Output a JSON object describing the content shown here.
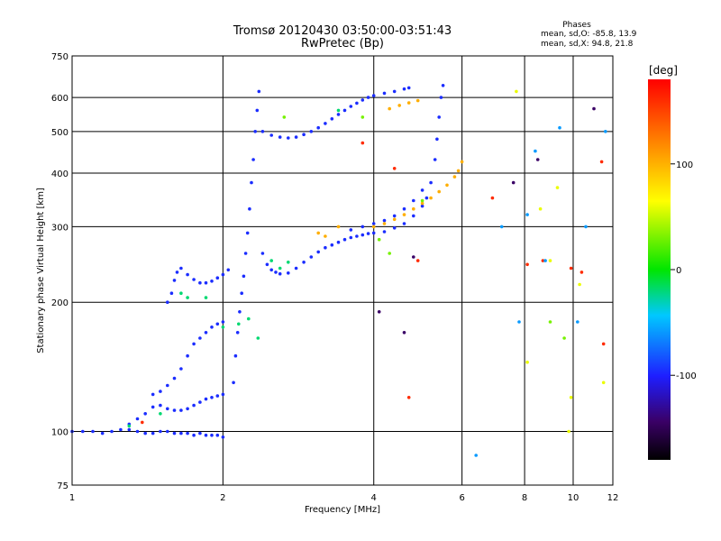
{
  "title_line1": "Tromsø 20120430 03:50:00-03:51:43",
  "title_line2": "RwPretec (Bp)",
  "stats": {
    "heading": "Phases",
    "o_mode": "mean, sd,O: -85.8, 13.9",
    "x_mode": "mean, sd,X:  94.8, 21.8"
  },
  "colorbar": {
    "label": "[deg]",
    "min": -180,
    "max": 180,
    "tick_values": [
      100,
      0,
      -100
    ],
    "tick_labels": [
      "100",
      "0",
      "-100"
    ]
  },
  "chart_data": {
    "type": "scatter",
    "xlabel": "Frequency [MHz]",
    "ylabel": "Stationary phase Virtual Height [km]",
    "xlim": [
      1,
      12
    ],
    "ylim": [
      75,
      750
    ],
    "x_scale": "log",
    "y_scale": "log",
    "grid": true,
    "x_ticks": [
      1,
      2,
      4,
      6,
      8,
      10,
      12
    ],
    "y_ticks": [
      75,
      100,
      200,
      300,
      400,
      500,
      600,
      750
    ],
    "series": [
      {
        "phase_deg": -95,
        "points": [
          [
            1.0,
            100
          ],
          [
            1.05,
            100
          ],
          [
            1.1,
            100
          ],
          [
            1.15,
            99
          ],
          [
            1.2,
            100
          ],
          [
            1.25,
            101
          ],
          [
            1.3,
            101
          ],
          [
            1.35,
            100
          ],
          [
            1.4,
            99
          ],
          [
            1.45,
            99
          ],
          [
            1.5,
            100
          ],
          [
            1.55,
            100
          ],
          [
            1.6,
            99
          ],
          [
            1.65,
            99
          ],
          [
            1.7,
            99
          ],
          [
            1.75,
            98
          ],
          [
            1.8,
            99
          ],
          [
            1.85,
            98
          ],
          [
            1.9,
            98
          ],
          [
            1.95,
            98
          ],
          [
            2.0,
            97
          ],
          [
            1.3,
            104
          ],
          [
            1.35,
            107
          ],
          [
            1.4,
            110
          ],
          [
            1.45,
            114
          ],
          [
            1.5,
            115
          ],
          [
            1.55,
            113
          ],
          [
            1.6,
            112
          ],
          [
            1.65,
            112
          ],
          [
            1.7,
            113
          ],
          [
            1.75,
            115
          ],
          [
            1.8,
            117
          ],
          [
            1.85,
            119
          ],
          [
            1.9,
            120
          ],
          [
            1.95,
            121
          ],
          [
            2.0,
            122
          ],
          [
            1.45,
            122
          ],
          [
            1.5,
            124
          ],
          [
            1.55,
            128
          ],
          [
            1.6,
            133
          ],
          [
            1.65,
            140
          ],
          [
            1.7,
            150
          ],
          [
            1.75,
            160
          ],
          [
            1.8,
            165
          ],
          [
            1.85,
            170
          ],
          [
            1.9,
            175
          ],
          [
            1.95,
            178
          ],
          [
            2.0,
            180
          ],
          [
            1.55,
            200
          ],
          [
            1.58,
            210
          ],
          [
            1.6,
            225
          ],
          [
            1.62,
            235
          ],
          [
            1.65,
            240
          ],
          [
            1.7,
            232
          ],
          [
            1.75,
            226
          ],
          [
            1.8,
            222
          ],
          [
            1.85,
            222
          ],
          [
            1.9,
            224
          ],
          [
            1.95,
            228
          ],
          [
            2.0,
            232
          ],
          [
            2.05,
            238
          ],
          [
            2.1,
            130
          ],
          [
            2.12,
            150
          ],
          [
            2.14,
            170
          ],
          [
            2.16,
            190
          ],
          [
            2.18,
            210
          ],
          [
            2.2,
            230
          ],
          [
            2.22,
            260
          ],
          [
            2.24,
            290
          ],
          [
            2.26,
            330
          ],
          [
            2.28,
            380
          ],
          [
            2.3,
            430
          ],
          [
            2.32,
            500
          ],
          [
            2.34,
            560
          ],
          [
            2.36,
            620
          ],
          [
            2.4,
            260
          ],
          [
            2.45,
            245
          ],
          [
            2.5,
            238
          ],
          [
            2.55,
            235
          ],
          [
            2.6,
            233
          ],
          [
            2.7,
            234
          ],
          [
            2.8,
            240
          ],
          [
            2.9,
            248
          ],
          [
            3.0,
            255
          ],
          [
            3.1,
            262
          ],
          [
            3.2,
            268
          ],
          [
            3.3,
            272
          ],
          [
            3.4,
            276
          ],
          [
            3.5,
            280
          ],
          [
            3.6,
            283
          ],
          [
            3.7,
            285
          ],
          [
            3.8,
            287
          ],
          [
            3.9,
            289
          ],
          [
            4.0,
            290
          ],
          [
            4.2,
            292
          ],
          [
            4.4,
            298
          ],
          [
            4.6,
            305
          ],
          [
            4.8,
            318
          ],
          [
            5.0,
            335
          ],
          [
            5.1,
            350
          ],
          [
            5.2,
            380
          ],
          [
            5.3,
            430
          ],
          [
            5.35,
            480
          ],
          [
            5.4,
            540
          ],
          [
            5.45,
            600
          ],
          [
            5.5,
            640
          ],
          [
            2.4,
            500
          ],
          [
            2.5,
            490
          ],
          [
            2.6,
            485
          ],
          [
            2.7,
            483
          ],
          [
            2.8,
            485
          ],
          [
            2.9,
            492
          ],
          [
            3.0,
            500
          ],
          [
            3.1,
            510
          ],
          [
            3.2,
            522
          ],
          [
            3.3,
            535
          ],
          [
            3.4,
            548
          ],
          [
            3.5,
            560
          ],
          [
            3.6,
            572
          ],
          [
            3.7,
            582
          ],
          [
            3.8,
            592
          ],
          [
            3.9,
            600
          ],
          [
            4.0,
            606
          ],
          [
            4.2,
            614
          ],
          [
            4.4,
            620
          ],
          [
            4.6,
            628
          ],
          [
            4.7,
            632
          ],
          [
            3.6,
            295
          ],
          [
            3.8,
            300
          ],
          [
            4.0,
            305
          ],
          [
            4.2,
            310
          ],
          [
            4.4,
            318
          ],
          [
            4.6,
            330
          ],
          [
            4.8,
            345
          ],
          [
            5.0,
            365
          ]
        ]
      },
      {
        "phase_deg": 100,
        "points": [
          [
            4.0,
            300
          ],
          [
            4.2,
            305
          ],
          [
            4.4,
            312
          ],
          [
            4.6,
            320
          ],
          [
            4.8,
            330
          ],
          [
            5.0,
            340
          ],
          [
            5.2,
            350
          ],
          [
            5.4,
            362
          ],
          [
            5.6,
            375
          ],
          [
            5.8,
            392
          ],
          [
            5.9,
            405
          ],
          [
            6.0,
            425
          ],
          [
            4.3,
            565
          ],
          [
            4.5,
            575
          ],
          [
            4.7,
            583
          ],
          [
            4.9,
            590
          ],
          [
            3.1,
            290
          ],
          [
            3.2,
            285
          ],
          [
            3.4,
            300
          ]
        ]
      },
      {
        "phase_deg": -20,
        "points": [
          [
            1.3,
            103
          ],
          [
            1.5,
            110
          ],
          [
            1.65,
            210
          ],
          [
            1.7,
            205
          ],
          [
            1.85,
            205
          ],
          [
            2.0,
            175
          ],
          [
            2.15,
            178
          ],
          [
            2.25,
            183
          ],
          [
            2.35,
            165
          ],
          [
            2.5,
            250
          ],
          [
            2.6,
            240
          ],
          [
            2.7,
            248
          ],
          [
            3.4,
            560
          ]
        ]
      },
      {
        "phase_deg": 30,
        "points": [
          [
            2.65,
            540
          ],
          [
            3.8,
            540
          ],
          [
            4.1,
            280
          ],
          [
            4.3,
            260
          ],
          [
            5.0,
            345
          ],
          [
            9.0,
            180
          ],
          [
            9.6,
            165
          ]
        ]
      },
      {
        "phase_deg": 160,
        "points": [
          [
            1.38,
            105
          ],
          [
            3.8,
            470
          ],
          [
            4.4,
            410
          ],
          [
            6.9,
            350
          ],
          [
            8.1,
            245
          ],
          [
            8.7,
            250
          ],
          [
            9.9,
            240
          ],
          [
            10.4,
            235
          ],
          [
            11.5,
            160
          ],
          [
            11.4,
            425
          ],
          [
            4.9,
            250
          ],
          [
            4.7,
            120
          ]
        ]
      },
      {
        "phase_deg": -150,
        "points": [
          [
            4.1,
            190
          ],
          [
            4.6,
            170
          ],
          [
            4.8,
            255
          ],
          [
            7.6,
            380
          ],
          [
            8.5,
            430
          ],
          [
            11.0,
            565
          ]
        ]
      },
      {
        "phase_deg": 60,
        "points": [
          [
            7.7,
            620
          ],
          [
            8.1,
            145
          ],
          [
            8.6,
            330
          ],
          [
            9.0,
            250
          ],
          [
            9.3,
            370
          ],
          [
            9.8,
            100
          ],
          [
            9.9,
            120
          ],
          [
            10.3,
            220
          ],
          [
            11.5,
            130
          ]
        ]
      },
      {
        "phase_deg": -60,
        "points": [
          [
            6.4,
            88
          ],
          [
            7.2,
            300
          ],
          [
            7.8,
            180
          ],
          [
            8.1,
            320
          ],
          [
            8.4,
            450
          ],
          [
            8.8,
            250
          ],
          [
            9.4,
            510
          ],
          [
            10.2,
            180
          ],
          [
            10.6,
            300
          ],
          [
            11.6,
            500
          ]
        ]
      }
    ]
  }
}
